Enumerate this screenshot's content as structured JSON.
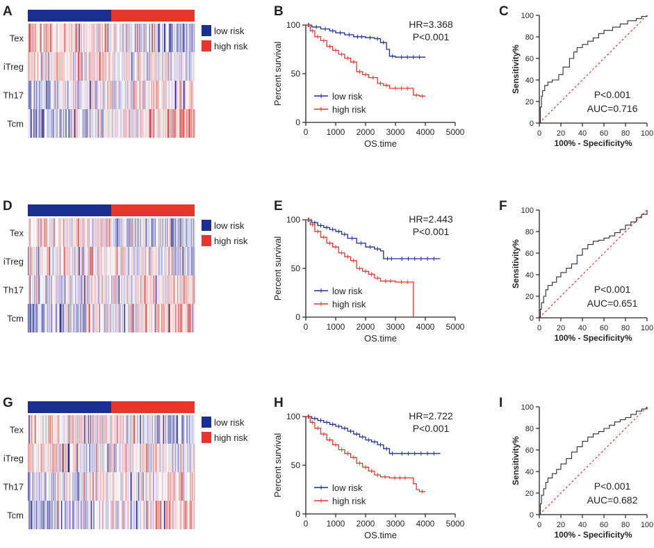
{
  "colors": {
    "low": "#1a2f8f",
    "high": "#e8352b",
    "diag": "#e8352b",
    "roc": "#2b2b2b",
    "axis": "#222222"
  },
  "chart_data": [
    {
      "panel": "A",
      "type": "heatmap",
      "row_labels": [
        "Tex",
        "iTreg",
        "Th17",
        "Tcm"
      ],
      "group_sizes": [
        0.5,
        0.5
      ],
      "legend": [
        "low risk",
        "high risk"
      ],
      "row_bias": [
        -0.45,
        -0.15,
        0.25,
        0.45
      ],
      "seed": 11
    },
    {
      "panel": "B",
      "type": "line",
      "xlabel": "OS.time",
      "ylabel": "Percent survival",
      "xlim": [
        0,
        5000
      ],
      "ylim": [
        0,
        100
      ],
      "xticks": [
        0,
        1000,
        2000,
        3000,
        4000,
        5000
      ],
      "yticks": [
        0,
        50,
        100
      ],
      "hr_text": "HR=3.368",
      "p_text": "P<0.001",
      "series": [
        {
          "name": "low risk",
          "color_key": "low",
          "points": [
            [
              0,
              100
            ],
            [
              200,
              98
            ],
            [
              500,
              96
            ],
            [
              800,
              94
            ],
            [
              1000,
              92
            ],
            [
              1300,
              90
            ],
            [
              1600,
              88
            ],
            [
              2000,
              87
            ],
            [
              2300,
              86
            ],
            [
              2500,
              82
            ],
            [
              2700,
              75
            ],
            [
              2800,
              68
            ],
            [
              3000,
              67
            ],
            [
              4000,
              67
            ]
          ]
        },
        {
          "name": "high risk",
          "color_key": "high",
          "points": [
            [
              0,
              100
            ],
            [
              150,
              94
            ],
            [
              300,
              88
            ],
            [
              500,
              84
            ],
            [
              700,
              78
            ],
            [
              900,
              74
            ],
            [
              1100,
              70
            ],
            [
              1300,
              66
            ],
            [
              1500,
              62
            ],
            [
              1700,
              52
            ],
            [
              1900,
              49
            ],
            [
              2100,
              46
            ],
            [
              2400,
              40
            ],
            [
              2600,
              38
            ],
            [
              2800,
              35
            ],
            [
              3600,
              35
            ],
            [
              3600,
              28
            ],
            [
              3800,
              27
            ],
            [
              4000,
              27
            ]
          ]
        }
      ]
    },
    {
      "panel": "C",
      "type": "line",
      "xlabel": "100% - Specificity%",
      "ylabel": "Sensitivity%",
      "xlim": [
        0,
        100
      ],
      "ylim": [
        0,
        100
      ],
      "xticks": [
        0,
        20,
        40,
        60,
        80,
        100
      ],
      "yticks": [
        0,
        20,
        40,
        60,
        80,
        100
      ],
      "p_text": "P<0.001",
      "auc_text": "AUC=0.716",
      "roc": [
        [
          0,
          0
        ],
        [
          1,
          15
        ],
        [
          2,
          25
        ],
        [
          3,
          30
        ],
        [
          5,
          35
        ],
        [
          8,
          38
        ],
        [
          12,
          40
        ],
        [
          18,
          45
        ],
        [
          22,
          52
        ],
        [
          28,
          60
        ],
        [
          32,
          66
        ],
        [
          35,
          70
        ],
        [
          40,
          73
        ],
        [
          45,
          76
        ],
        [
          50,
          79
        ],
        [
          55,
          83
        ],
        [
          60,
          86
        ],
        [
          68,
          89
        ],
        [
          75,
          92
        ],
        [
          82,
          95
        ],
        [
          90,
          97
        ],
        [
          95,
          99
        ],
        [
          100,
          100
        ]
      ]
    },
    {
      "panel": "D",
      "type": "heatmap",
      "row_labels": [
        "Tex",
        "iTreg",
        "Th17",
        "Tcm"
      ],
      "group_sizes": [
        0.5,
        0.5
      ],
      "legend": [
        "low risk",
        "high risk"
      ],
      "row_bias": [
        -0.3,
        -0.1,
        0.2,
        0.4
      ],
      "seed": 23
    },
    {
      "panel": "E",
      "type": "line",
      "xlabel": "OS.time",
      "ylabel": "Percent survival",
      "xlim": [
        0,
        5000
      ],
      "ylim": [
        0,
        100
      ],
      "xticks": [
        0,
        1000,
        2000,
        3000,
        4000,
        5000
      ],
      "yticks": [
        0,
        50,
        100
      ],
      "hr_text": "HR=2.443",
      "p_text": "P<0.001",
      "series": [
        {
          "name": "low risk",
          "color_key": "low",
          "points": [
            [
              0,
              100
            ],
            [
              200,
              97
            ],
            [
              400,
              94
            ],
            [
              600,
              92
            ],
            [
              800,
              90
            ],
            [
              1000,
              88
            ],
            [
              1200,
              85
            ],
            [
              1400,
              81
            ],
            [
              1700,
              76
            ],
            [
              2000,
              72
            ],
            [
              2300,
              70
            ],
            [
              2500,
              68
            ],
            [
              2600,
              60
            ],
            [
              3000,
              60
            ],
            [
              4500,
              60
            ]
          ]
        },
        {
          "name": "high risk",
          "color_key": "high",
          "points": [
            [
              0,
              100
            ],
            [
              150,
              95
            ],
            [
              300,
              88
            ],
            [
              500,
              82
            ],
            [
              700,
              76
            ],
            [
              900,
              72
            ],
            [
              1100,
              66
            ],
            [
              1300,
              62
            ],
            [
              1500,
              58
            ],
            [
              1700,
              50
            ],
            [
              1900,
              47
            ],
            [
              2100,
              44
            ],
            [
              2300,
              40
            ],
            [
              2500,
              37
            ],
            [
              3000,
              36
            ],
            [
              3600,
              36
            ],
            [
              3600,
              0
            ]
          ]
        }
      ]
    },
    {
      "panel": "F",
      "type": "line",
      "xlabel": "100% - Specificity%",
      "ylabel": "Sensitivity%",
      "xlim": [
        0,
        100
      ],
      "ylim": [
        0,
        100
      ],
      "xticks": [
        0,
        20,
        40,
        60,
        80,
        100
      ],
      "yticks": [
        0,
        20,
        40,
        60,
        80,
        100
      ],
      "p_text": "P<0.001",
      "auc_text": "AUC=0.651",
      "roc": [
        [
          0,
          0
        ],
        [
          1,
          8
        ],
        [
          2,
          14
        ],
        [
          4,
          20
        ],
        [
          6,
          26
        ],
        [
          8,
          30
        ],
        [
          12,
          33
        ],
        [
          16,
          38
        ],
        [
          20,
          42
        ],
        [
          25,
          46
        ],
        [
          30,
          50
        ],
        [
          35,
          58
        ],
        [
          40,
          64
        ],
        [
          45,
          68
        ],
        [
          50,
          71
        ],
        [
          55,
          72
        ],
        [
          60,
          74
        ],
        [
          65,
          76
        ],
        [
          70,
          79
        ],
        [
          75,
          82
        ],
        [
          80,
          86
        ],
        [
          85,
          89
        ],
        [
          90,
          93
        ],
        [
          95,
          96
        ],
        [
          100,
          100
        ]
      ]
    },
    {
      "panel": "G",
      "type": "heatmap",
      "row_labels": [
        "Tex",
        "iTreg",
        "Th17",
        "Tcm"
      ],
      "group_sizes": [
        0.5,
        0.5
      ],
      "legend": [
        "low risk",
        "high risk"
      ],
      "row_bias": [
        -0.35,
        -0.12,
        0.2,
        0.38
      ],
      "seed": 37
    },
    {
      "panel": "H",
      "type": "line",
      "xlabel": "OS.time",
      "ylabel": "Percent survival",
      "xlim": [
        0,
        5000
      ],
      "ylim": [
        0,
        100
      ],
      "xticks": [
        0,
        1000,
        2000,
        3000,
        4000,
        5000
      ],
      "yticks": [
        0,
        50,
        100
      ],
      "hr_text": "HR=2.722",
      "p_text": "P<0.001",
      "series": [
        {
          "name": "low risk",
          "color_key": "low",
          "points": [
            [
              0,
              100
            ],
            [
              200,
              98
            ],
            [
              400,
              96
            ],
            [
              600,
              94
            ],
            [
              800,
              92
            ],
            [
              1000,
              90
            ],
            [
              1200,
              88
            ],
            [
              1400,
              85
            ],
            [
              1600,
              82
            ],
            [
              1800,
              79
            ],
            [
              2000,
              76
            ],
            [
              2200,
              74
            ],
            [
              2400,
              71
            ],
            [
              2600,
              67
            ],
            [
              2800,
              62
            ],
            [
              3000,
              62
            ],
            [
              4500,
              62
            ]
          ]
        },
        {
          "name": "high risk",
          "color_key": "high",
          "points": [
            [
              0,
              100
            ],
            [
              150,
              94
            ],
            [
              300,
              88
            ],
            [
              500,
              82
            ],
            [
              700,
              76
            ],
            [
              900,
              71
            ],
            [
              1100,
              66
            ],
            [
              1300,
              62
            ],
            [
              1500,
              58
            ],
            [
              1700,
              52
            ],
            [
              1900,
              48
            ],
            [
              2100,
              44
            ],
            [
              2300,
              40
            ],
            [
              2500,
              38
            ],
            [
              2800,
              37
            ],
            [
              3500,
              37
            ],
            [
              3600,
              31
            ],
            [
              3700,
              25
            ],
            [
              3800,
              23
            ],
            [
              4000,
              23
            ]
          ]
        }
      ]
    },
    {
      "panel": "I",
      "type": "line",
      "xlabel": "100% - Specificity%",
      "ylabel": "Sensitivity%",
      "xlim": [
        0,
        100
      ],
      "ylim": [
        0,
        100
      ],
      "xticks": [
        0,
        20,
        40,
        60,
        80,
        100
      ],
      "yticks": [
        0,
        20,
        40,
        60,
        80,
        100
      ],
      "p_text": "P<0.001",
      "auc_text": "AUC=0.682",
      "roc": [
        [
          0,
          0
        ],
        [
          1,
          10
        ],
        [
          2,
          18
        ],
        [
          4,
          24
        ],
        [
          6,
          30
        ],
        [
          8,
          34
        ],
        [
          12,
          38
        ],
        [
          16,
          42
        ],
        [
          20,
          47
        ],
        [
          25,
          52
        ],
        [
          30,
          58
        ],
        [
          35,
          63
        ],
        [
          40,
          68
        ],
        [
          45,
          72
        ],
        [
          50,
          75
        ],
        [
          55,
          77
        ],
        [
          60,
          80
        ],
        [
          65,
          83
        ],
        [
          70,
          86
        ],
        [
          75,
          88
        ],
        [
          80,
          90
        ],
        [
          85,
          93
        ],
        [
          90,
          96
        ],
        [
          95,
          98
        ],
        [
          100,
          100
        ]
      ]
    }
  ]
}
